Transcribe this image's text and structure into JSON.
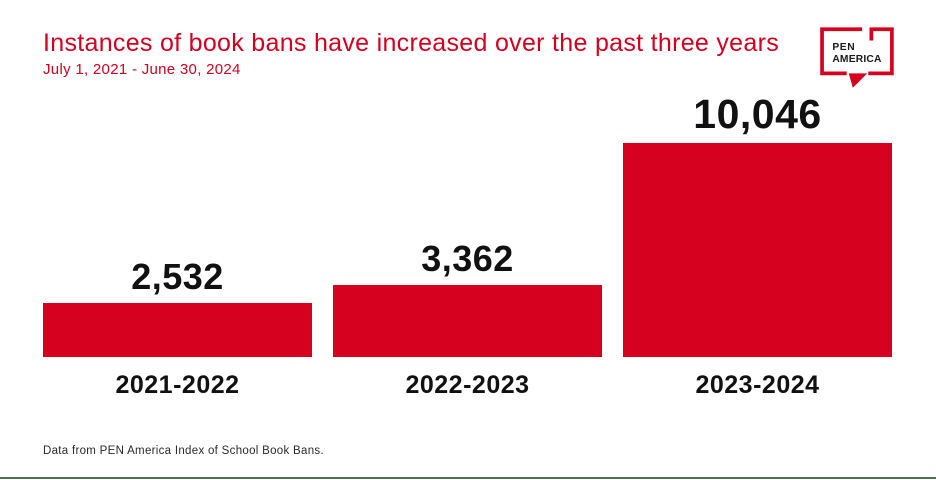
{
  "header": {
    "title": "Instances of book bans have increased over the past three years",
    "subtitle": "July 1, 2021 - June 30, 2024"
  },
  "logo": {
    "line1": "PEN",
    "line2": "AMERICA"
  },
  "chart_data": {
    "type": "bar",
    "title": "Instances of book bans have increased over the past three years",
    "subtitle": "July 1, 2021 - June 30, 2024",
    "categories": [
      "2021-2022",
      "2022-2023",
      "2023-2024"
    ],
    "values": [
      2532,
      3362,
      10046
    ],
    "value_labels": [
      "2,532",
      "3,362",
      "10,046"
    ],
    "xlabel": "",
    "ylabel": "",
    "ylim": [
      0,
      10046
    ],
    "grid": false,
    "legend": "none",
    "bar_color": "#d6001f",
    "value_label_color": "#111111"
  },
  "footer": {
    "source": "Data from PEN America Index of School Book Bans."
  },
  "colors": {
    "accent_red": "#d6001f",
    "text_black": "#111111",
    "bottom_rule_green": "#4e7257"
  }
}
